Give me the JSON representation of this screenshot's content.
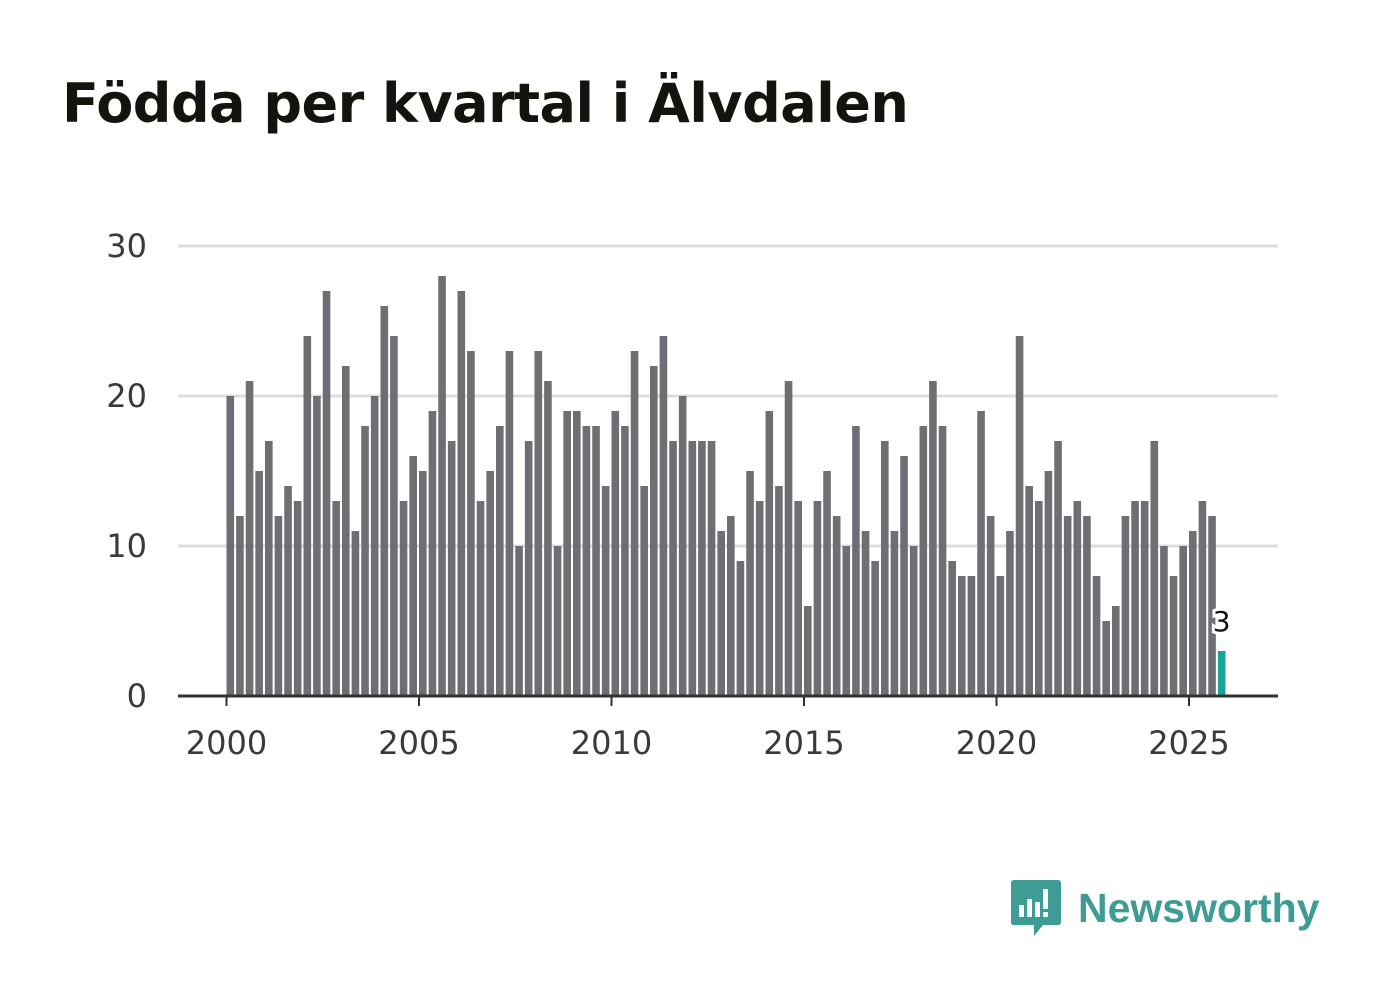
{
  "chart_data": {
    "type": "bar",
    "title": "Födda per kvartal i Älvdalen",
    "xlabel": "",
    "ylabel": "",
    "ylim": [
      0,
      30
    ],
    "yticks": [
      0,
      10,
      20,
      30
    ],
    "xticks": [
      "2000",
      "2005",
      "2010",
      "2015",
      "2020",
      "2025"
    ],
    "grid": true,
    "start_year": 2000,
    "categories": [
      "2000 K1",
      "2000 K2",
      "2000 K3",
      "2000 K4",
      "2001 K1",
      "2001 K2",
      "2001 K3",
      "2001 K4",
      "2002 K1",
      "2002 K2",
      "2002 K3",
      "2002 K4",
      "2003 K1",
      "2003 K2",
      "2003 K3",
      "2003 K4",
      "2004 K1",
      "2004 K2",
      "2004 K3",
      "2004 K4",
      "2005 K1",
      "2005 K2",
      "2005 K3",
      "2005 K4",
      "2006 K1",
      "2006 K2",
      "2006 K3",
      "2006 K4",
      "2007 K1",
      "2007 K2",
      "2007 K3",
      "2007 K4",
      "2008 K1",
      "2008 K2",
      "2008 K3",
      "2008 K4",
      "2009 K1",
      "2009 K2",
      "2009 K3",
      "2009 K4",
      "2010 K1",
      "2010 K2",
      "2010 K3",
      "2010 K4",
      "2011 K1",
      "2011 K2",
      "2011 K3",
      "2011 K4",
      "2012 K1",
      "2012 K2",
      "2012 K3",
      "2012 K4",
      "2013 K1",
      "2013 K2",
      "2013 K3",
      "2013 K4",
      "2014 K1",
      "2014 K2",
      "2014 K3",
      "2014 K4",
      "2015 K1",
      "2015 K2",
      "2015 K3",
      "2015 K4",
      "2016 K1",
      "2016 K2",
      "2016 K3",
      "2016 K4",
      "2017 K1",
      "2017 K2",
      "2017 K3",
      "2017 K4",
      "2018 K1",
      "2018 K2",
      "2018 K3",
      "2018 K4",
      "2019 K1",
      "2019 K2",
      "2019 K3",
      "2019 K4",
      "2020 K1",
      "2020 K2",
      "2020 K3",
      "2020 K4",
      "2021 K1",
      "2021 K2",
      "2021 K3",
      "2021 K4",
      "2022 K1",
      "2022 K2",
      "2022 K3",
      "2022 K4",
      "2023 K1",
      "2023 K2",
      "2023 K3",
      "2023 K4",
      "2024 K1",
      "2024 K2",
      "2024 K3",
      "2024 K4",
      "2025 K1",
      "2025 K2",
      "2025 K3",
      "2025 K4"
    ],
    "values": [
      20,
      12,
      21,
      15,
      17,
      12,
      14,
      13,
      24,
      20,
      27,
      13,
      22,
      11,
      18,
      20,
      26,
      24,
      13,
      16,
      15,
      19,
      28,
      17,
      27,
      23,
      13,
      15,
      18,
      23,
      10,
      17,
      23,
      21,
      10,
      19,
      19,
      18,
      18,
      14,
      19,
      18,
      23,
      14,
      22,
      24,
      17,
      20,
      17,
      17,
      17,
      11,
      12,
      9,
      15,
      13,
      19,
      14,
      21,
      13,
      6,
      13,
      15,
      12,
      10,
      18,
      11,
      9,
      17,
      11,
      16,
      10,
      18,
      21,
      18,
      9,
      8,
      8,
      19,
      12,
      8,
      11,
      24,
      14,
      13,
      15,
      17,
      12,
      13,
      12,
      8,
      5,
      6,
      12,
      13,
      13,
      17,
      10,
      8,
      10,
      11,
      13,
      12,
      3
    ],
    "highlight_index": 103,
    "highlight_label": "3",
    "colors": {
      "bar": "#6e6e73",
      "highlight": "#1aa39a",
      "grid": "#dddddd",
      "axis": "#333333"
    }
  },
  "brand": {
    "name": "Newsworthy",
    "color": "#3f9c94"
  }
}
